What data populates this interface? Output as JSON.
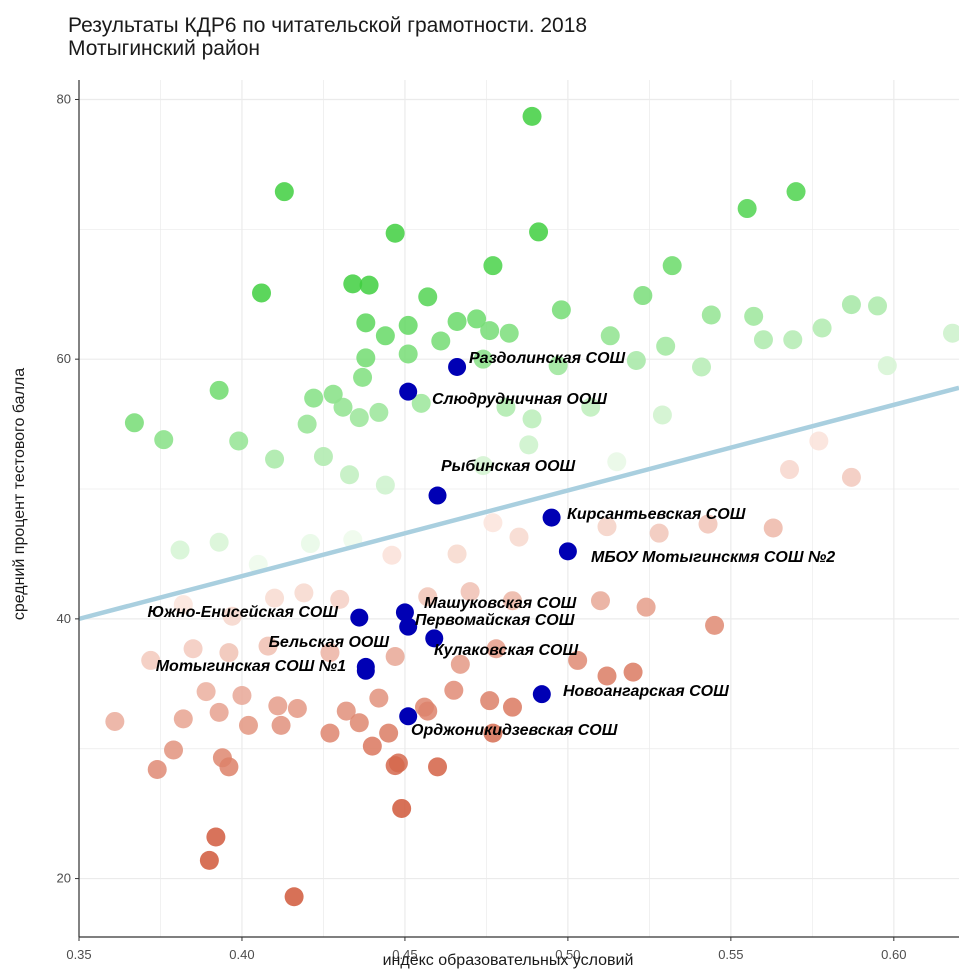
{
  "colors": {
    "highlight": "#0000b4",
    "trend": "#a9cfdf",
    "high_score": "#3fcf3f",
    "low_score": "#d0583a",
    "grid": "#ebebeb",
    "axis": "#333333"
  },
  "chart_data": {
    "type": "scatter",
    "title": "Результаты КДР6 по читательской грамотности. 2018",
    "subtitle": "Мотыгинский район",
    "xlabel": "индекс образовательных условий",
    "ylabel": "средний процент тестового балла",
    "xlim": [
      0.35,
      0.62
    ],
    "ylim": [
      15.5,
      81.5
    ],
    "xticks": [
      "0.35",
      "0.40",
      "0.45",
      "0.50",
      "0.55",
      "0.60"
    ],
    "yticks": [
      "20",
      "40",
      "60",
      "80"
    ],
    "grid": true,
    "trend_line": {
      "x": [
        0.35,
        0.62
      ],
      "y": [
        40.0,
        57.8
      ]
    },
    "highlighted_schools": [
      {
        "name": "Раздолинская СОШ",
        "x": 0.466,
        "y": 59.4
      },
      {
        "name": "Слюдрудничная ООШ",
        "x": 0.451,
        "y": 57.5
      },
      {
        "name": "Рыбинская ООШ",
        "x": 0.46,
        "y": 49.5
      },
      {
        "name": "Кирсантьевская СОШ",
        "x": 0.495,
        "y": 47.8
      },
      {
        "name": "МБОУ Мотыгинскмя СОШ №2",
        "x": 0.5,
        "y": 45.2
      },
      {
        "name": "Южно-Енисейская СОШ",
        "x": 0.436,
        "y": 40.1
      },
      {
        "name": "Машуковская СОШ",
        "x": 0.45,
        "y": 40.5
      },
      {
        "name": "Первомайская СОШ",
        "x": 0.451,
        "y": 39.4
      },
      {
        "name": "Бельская ООШ",
        "x": 0.438,
        "y": 36.3
      },
      {
        "name": "Мотыгинская СОШ №1",
        "x": 0.438,
        "y": 36.0
      },
      {
        "name": "Кулаковская СОШ",
        "x": 0.459,
        "y": 38.5
      },
      {
        "name": "Новоангарская СОШ",
        "x": 0.492,
        "y": 34.2
      },
      {
        "name": "Орджоникидзевская СОШ",
        "x": 0.451,
        "y": 32.5
      }
    ],
    "background_points": [
      {
        "x": 0.489,
        "y": 78.7
      },
      {
        "x": 0.413,
        "y": 72.9
      },
      {
        "x": 0.57,
        "y": 72.9
      },
      {
        "x": 0.555,
        "y": 71.6
      },
      {
        "x": 0.447,
        "y": 69.7
      },
      {
        "x": 0.491,
        "y": 69.8
      },
      {
        "x": 0.477,
        "y": 67.2
      },
      {
        "x": 0.532,
        "y": 67.2
      },
      {
        "x": 0.406,
        "y": 65.1
      },
      {
        "x": 0.434,
        "y": 65.8
      },
      {
        "x": 0.439,
        "y": 65.7
      },
      {
        "x": 0.457,
        "y": 64.8
      },
      {
        "x": 0.498,
        "y": 63.8
      },
      {
        "x": 0.523,
        "y": 64.9
      },
      {
        "x": 0.544,
        "y": 63.4
      },
      {
        "x": 0.557,
        "y": 63.3
      },
      {
        "x": 0.587,
        "y": 64.2
      },
      {
        "x": 0.595,
        "y": 64.1
      },
      {
        "x": 0.466,
        "y": 62.9
      },
      {
        "x": 0.472,
        "y": 63.1
      },
      {
        "x": 0.476,
        "y": 62.2
      },
      {
        "x": 0.482,
        "y": 62.0
      },
      {
        "x": 0.438,
        "y": 62.8
      },
      {
        "x": 0.444,
        "y": 61.8
      },
      {
        "x": 0.451,
        "y": 62.6
      },
      {
        "x": 0.461,
        "y": 61.4
      },
      {
        "x": 0.513,
        "y": 61.8
      },
      {
        "x": 0.53,
        "y": 61.0
      },
      {
        "x": 0.56,
        "y": 61.5
      },
      {
        "x": 0.569,
        "y": 61.5
      },
      {
        "x": 0.578,
        "y": 62.4
      },
      {
        "x": 0.618,
        "y": 62.0
      },
      {
        "x": 0.438,
        "y": 60.1
      },
      {
        "x": 0.451,
        "y": 60.4
      },
      {
        "x": 0.474,
        "y": 60.0
      },
      {
        "x": 0.497,
        "y": 59.5
      },
      {
        "x": 0.521,
        "y": 59.9
      },
      {
        "x": 0.541,
        "y": 59.4
      },
      {
        "x": 0.598,
        "y": 59.5
      },
      {
        "x": 0.437,
        "y": 58.6
      },
      {
        "x": 0.393,
        "y": 57.6
      },
      {
        "x": 0.376,
        "y": 53.8
      },
      {
        "x": 0.367,
        "y": 55.1
      },
      {
        "x": 0.42,
        "y": 55.0
      },
      {
        "x": 0.399,
        "y": 53.7
      },
      {
        "x": 0.422,
        "y": 57.0
      },
      {
        "x": 0.428,
        "y": 57.3
      },
      {
        "x": 0.431,
        "y": 56.3
      },
      {
        "x": 0.436,
        "y": 55.5
      },
      {
        "x": 0.442,
        "y": 55.9
      },
      {
        "x": 0.455,
        "y": 56.6
      },
      {
        "x": 0.481,
        "y": 56.3
      },
      {
        "x": 0.489,
        "y": 55.4
      },
      {
        "x": 0.507,
        "y": 56.3
      },
      {
        "x": 0.529,
        "y": 55.7
      },
      {
        "x": 0.41,
        "y": 52.3
      },
      {
        "x": 0.425,
        "y": 52.5
      },
      {
        "x": 0.433,
        "y": 51.1
      },
      {
        "x": 0.444,
        "y": 50.3
      },
      {
        "x": 0.474,
        "y": 51.8
      },
      {
        "x": 0.488,
        "y": 53.4
      },
      {
        "x": 0.515,
        "y": 52.1
      },
      {
        "x": 0.577,
        "y": 53.7
      },
      {
        "x": 0.568,
        "y": 51.5
      },
      {
        "x": 0.587,
        "y": 50.9
      },
      {
        "x": 0.381,
        "y": 45.3
      },
      {
        "x": 0.393,
        "y": 45.9
      },
      {
        "x": 0.405,
        "y": 44.2
      },
      {
        "x": 0.421,
        "y": 45.8
      },
      {
        "x": 0.434,
        "y": 46.1
      },
      {
        "x": 0.446,
        "y": 44.9
      },
      {
        "x": 0.466,
        "y": 45.0
      },
      {
        "x": 0.477,
        "y": 47.4
      },
      {
        "x": 0.485,
        "y": 46.3
      },
      {
        "x": 0.512,
        "y": 47.1
      },
      {
        "x": 0.528,
        "y": 46.6
      },
      {
        "x": 0.543,
        "y": 47.3
      },
      {
        "x": 0.563,
        "y": 47.0
      },
      {
        "x": 0.382,
        "y": 41.1
      },
      {
        "x": 0.397,
        "y": 40.2
      },
      {
        "x": 0.41,
        "y": 41.6
      },
      {
        "x": 0.419,
        "y": 42.0
      },
      {
        "x": 0.43,
        "y": 41.5
      },
      {
        "x": 0.457,
        "y": 41.7
      },
      {
        "x": 0.47,
        "y": 42.1
      },
      {
        "x": 0.483,
        "y": 41.4
      },
      {
        "x": 0.51,
        "y": 41.4
      },
      {
        "x": 0.524,
        "y": 40.9
      },
      {
        "x": 0.545,
        "y": 39.5
      },
      {
        "x": 0.372,
        "y": 36.8
      },
      {
        "x": 0.385,
        "y": 37.7
      },
      {
        "x": 0.396,
        "y": 37.4
      },
      {
        "x": 0.408,
        "y": 37.9
      },
      {
        "x": 0.427,
        "y": 37.4
      },
      {
        "x": 0.447,
        "y": 37.1
      },
      {
        "x": 0.467,
        "y": 36.5
      },
      {
        "x": 0.478,
        "y": 37.7
      },
      {
        "x": 0.503,
        "y": 36.8
      },
      {
        "x": 0.512,
        "y": 35.6
      },
      {
        "x": 0.52,
        "y": 35.9
      },
      {
        "x": 0.389,
        "y": 34.4
      },
      {
        "x": 0.4,
        "y": 34.1
      },
      {
        "x": 0.411,
        "y": 33.3
      },
      {
        "x": 0.417,
        "y": 33.1
      },
      {
        "x": 0.432,
        "y": 32.9
      },
      {
        "x": 0.442,
        "y": 33.9
      },
      {
        "x": 0.456,
        "y": 33.2
      },
      {
        "x": 0.465,
        "y": 34.5
      },
      {
        "x": 0.476,
        "y": 33.7
      },
      {
        "x": 0.483,
        "y": 33.2
      },
      {
        "x": 0.361,
        "y": 32.1
      },
      {
        "x": 0.382,
        "y": 32.3
      },
      {
        "x": 0.393,
        "y": 32.8
      },
      {
        "x": 0.402,
        "y": 31.8
      },
      {
        "x": 0.412,
        "y": 31.8
      },
      {
        "x": 0.427,
        "y": 31.2
      },
      {
        "x": 0.436,
        "y": 32.0
      },
      {
        "x": 0.44,
        "y": 30.2
      },
      {
        "x": 0.445,
        "y": 31.2
      },
      {
        "x": 0.457,
        "y": 32.9
      },
      {
        "x": 0.477,
        "y": 31.2
      },
      {
        "x": 0.379,
        "y": 29.9
      },
      {
        "x": 0.374,
        "y": 28.4
      },
      {
        "x": 0.394,
        "y": 29.3
      },
      {
        "x": 0.396,
        "y": 28.6
      },
      {
        "x": 0.448,
        "y": 28.9
      },
      {
        "x": 0.447,
        "y": 28.7
      },
      {
        "x": 0.46,
        "y": 28.6
      },
      {
        "x": 0.449,
        "y": 25.4
      },
      {
        "x": 0.392,
        "y": 23.2
      },
      {
        "x": 0.39,
        "y": 21.4
      },
      {
        "x": 0.416,
        "y": 18.6
      }
    ]
  }
}
